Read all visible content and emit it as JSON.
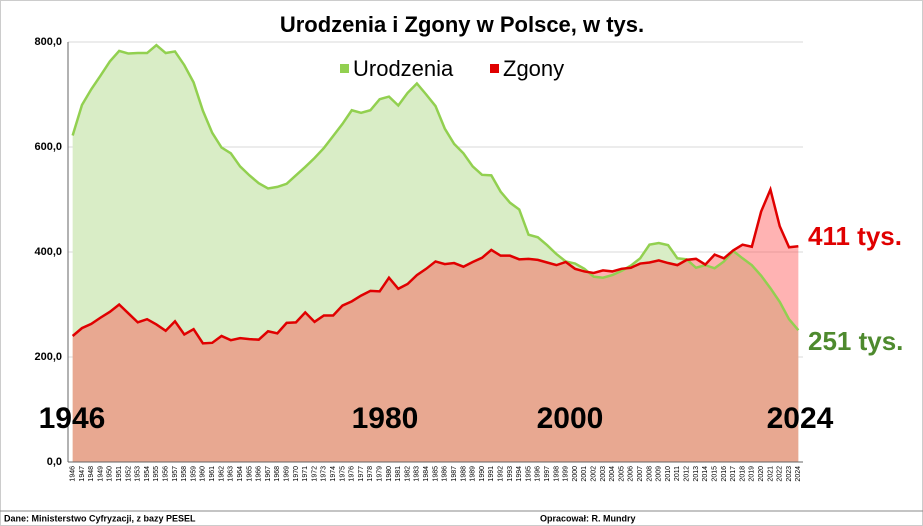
{
  "chart_data": {
    "type": "area",
    "title": "Urodzenia i Zgony w Polsce, w tys.",
    "categories": [
      "1946",
      "1947",
      "1948",
      "1949",
      "1950",
      "1951",
      "1952",
      "1953",
      "1954",
      "1955",
      "1956",
      "1957",
      "1958",
      "1959",
      "1960",
      "1961",
      "1962",
      "1963",
      "1964",
      "1965",
      "1966",
      "1967",
      "1968",
      "1969",
      "1970",
      "1971",
      "1972",
      "1973",
      "1974",
      "1975",
      "1976",
      "1977",
      "1978",
      "1979",
      "1980",
      "1981",
      "1982",
      "1983",
      "1984",
      "1985",
      "1986",
      "1987",
      "1988",
      "1989",
      "1990",
      "1991",
      "1992",
      "1993",
      "1994",
      "1995",
      "1996",
      "1997",
      "1998",
      "1999",
      "2000",
      "2001",
      "2002",
      "2003",
      "2004",
      "2005",
      "2006",
      "2007",
      "2008",
      "2009",
      "2010",
      "2011",
      "2012",
      "2013",
      "2014",
      "2015",
      "2016",
      "2017",
      "2018",
      "2019",
      "2020",
      "2021",
      "2022",
      "2023",
      "2024"
    ],
    "series": [
      {
        "name": "Urodzenia",
        "color": "#92d050",
        "fill": "#d9edc6",
        "values": [
          622,
          680,
          710,
          736,
          763,
          783,
          778,
          779,
          779,
          794,
          779,
          782,
          756,
          723,
          669,
          627,
          599,
          588,
          563,
          546,
          531,
          521,
          524,
          530,
          546,
          562,
          579,
          598,
          621,
          644,
          670,
          665,
          670,
          691,
          696,
          679,
          703,
          721,
          700,
          678,
          635,
          606,
          588,
          563,
          547,
          546,
          515,
          494,
          481,
          433,
          428,
          413,
          396,
          382,
          378,
          368,
          353,
          351,
          356,
          364,
          374,
          388,
          414,
          417,
          413,
          388,
          386,
          370,
          375,
          369,
          382,
          402,
          388,
          375,
          355,
          331,
          305,
          272,
          251
        ]
      },
      {
        "name": "Zgony",
        "color": "#e00000",
        "fill": "#ff4040",
        "values": [
          240,
          255,
          263,
          275,
          286,
          300,
          283,
          266,
          272,
          262,
          250,
          268,
          243,
          253,
          226,
          227,
          240,
          232,
          236,
          234,
          233,
          249,
          245,
          265,
          266,
          285,
          267,
          279,
          279,
          298,
          306,
          317,
          326,
          325,
          351,
          330,
          339,
          356,
          368,
          382,
          377,
          379,
          372,
          381,
          389,
          404,
          393,
          393,
          386,
          387,
          385,
          380,
          375,
          381,
          368,
          363,
          360,
          365,
          363,
          368,
          370,
          378,
          380,
          384,
          379,
          375,
          385,
          387,
          376,
          395,
          388,
          403,
          414,
          410,
          477,
          519,
          449,
          409,
          411
        ]
      }
    ],
    "ylim": [
      0,
      800
    ],
    "yticks": [
      {
        "value": 0,
        "label": "0,0"
      },
      {
        "value": 200,
        "label": "200,0"
      },
      {
        "value": 400,
        "label": "400,0"
      },
      {
        "value": 600,
        "label": "600,0"
      },
      {
        "value": 800,
        "label": "800,0"
      }
    ],
    "grid": true,
    "annotations": [
      "1946",
      "1980",
      "2000",
      "2024"
    ],
    "end_labels": [
      "411 tys.",
      "251 tys."
    ],
    "source": "Dane: Ministerstwo Cyfryzacji, z bazy PESEL",
    "author": "Opracował: R. Mundry"
  }
}
